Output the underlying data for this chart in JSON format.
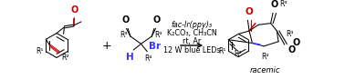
{
  "figsize": [
    3.78,
    0.87
  ],
  "dpi": 100,
  "background": "#ffffff",
  "reaction_lines": [
    "fac-Ir(ppy)₃",
    "K₂CO₃, CH₃CN",
    "rt, Ar",
    "12 W blue LEDs"
  ],
  "racemic_text": "racemic",
  "red_color": "#cc0000",
  "blue_color": "#3333ff",
  "black_color": "#000000",
  "font_size_reagent": 5.8,
  "font_size_R": 5.5,
  "font_size_plus": 9,
  "font_size_racemic": 6.0,
  "lw": 0.75
}
